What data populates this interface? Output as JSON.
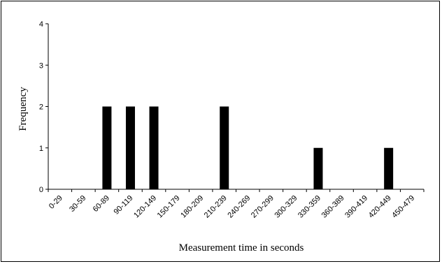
{
  "chart_data": {
    "type": "bar",
    "title": "",
    "xlabel": "Measurement time in seconds",
    "ylabel": "Frequency",
    "categories": [
      "0-29",
      "30-59",
      "60-89",
      "90-119",
      "120-149",
      "150-179",
      "180-209",
      "210-239",
      "240-269",
      "270-299",
      "300-329",
      "330-359",
      "360-389",
      "390-419",
      "420-449",
      "450-479"
    ],
    "values": [
      0,
      0,
      2,
      2,
      2,
      0,
      0,
      2,
      0,
      0,
      0,
      1,
      0,
      0,
      1,
      0
    ],
    "ylim": [
      0,
      4
    ],
    "yticks": [
      0,
      1,
      2,
      3,
      4
    ],
    "grid": false,
    "legend": "none",
    "bar_color": "#000000"
  }
}
